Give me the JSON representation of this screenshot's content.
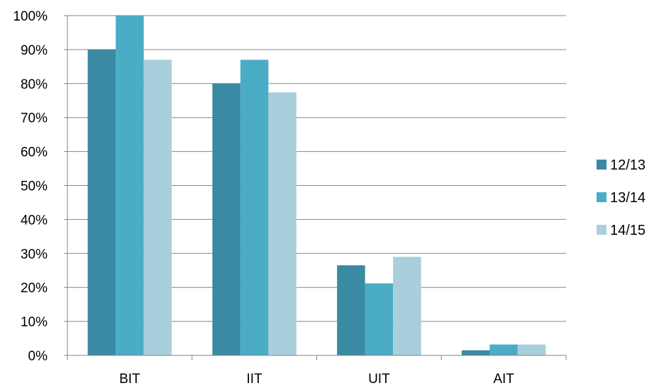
{
  "chart_data": {
    "type": "bar",
    "title": "",
    "xlabel": "",
    "ylabel": "",
    "categories": [
      "BIT",
      "IIT",
      "UIT",
      "AIT"
    ],
    "series": [
      {
        "name": "12/13",
        "color": "#3a8aa3",
        "values": [
          90,
          80,
          26.5,
          1.5
        ]
      },
      {
        "name": "13/14",
        "color": "#4bacc6",
        "values": [
          100,
          87,
          21.2,
          3.2
        ]
      },
      {
        "name": "14/15",
        "color": "#a9cfdd",
        "values": [
          87,
          77.4,
          29,
          3.2
        ]
      }
    ],
    "ylim": [
      0,
      100
    ],
    "yticks": [
      0,
      10,
      20,
      30,
      40,
      50,
      60,
      70,
      80,
      90,
      100
    ],
    "ytick_labels": [
      "0%",
      "10%",
      "20%",
      "30%",
      "40%",
      "50%",
      "60%",
      "70%",
      "80%",
      "90%",
      "100%"
    ],
    "grid": true,
    "legend_position": "right"
  }
}
